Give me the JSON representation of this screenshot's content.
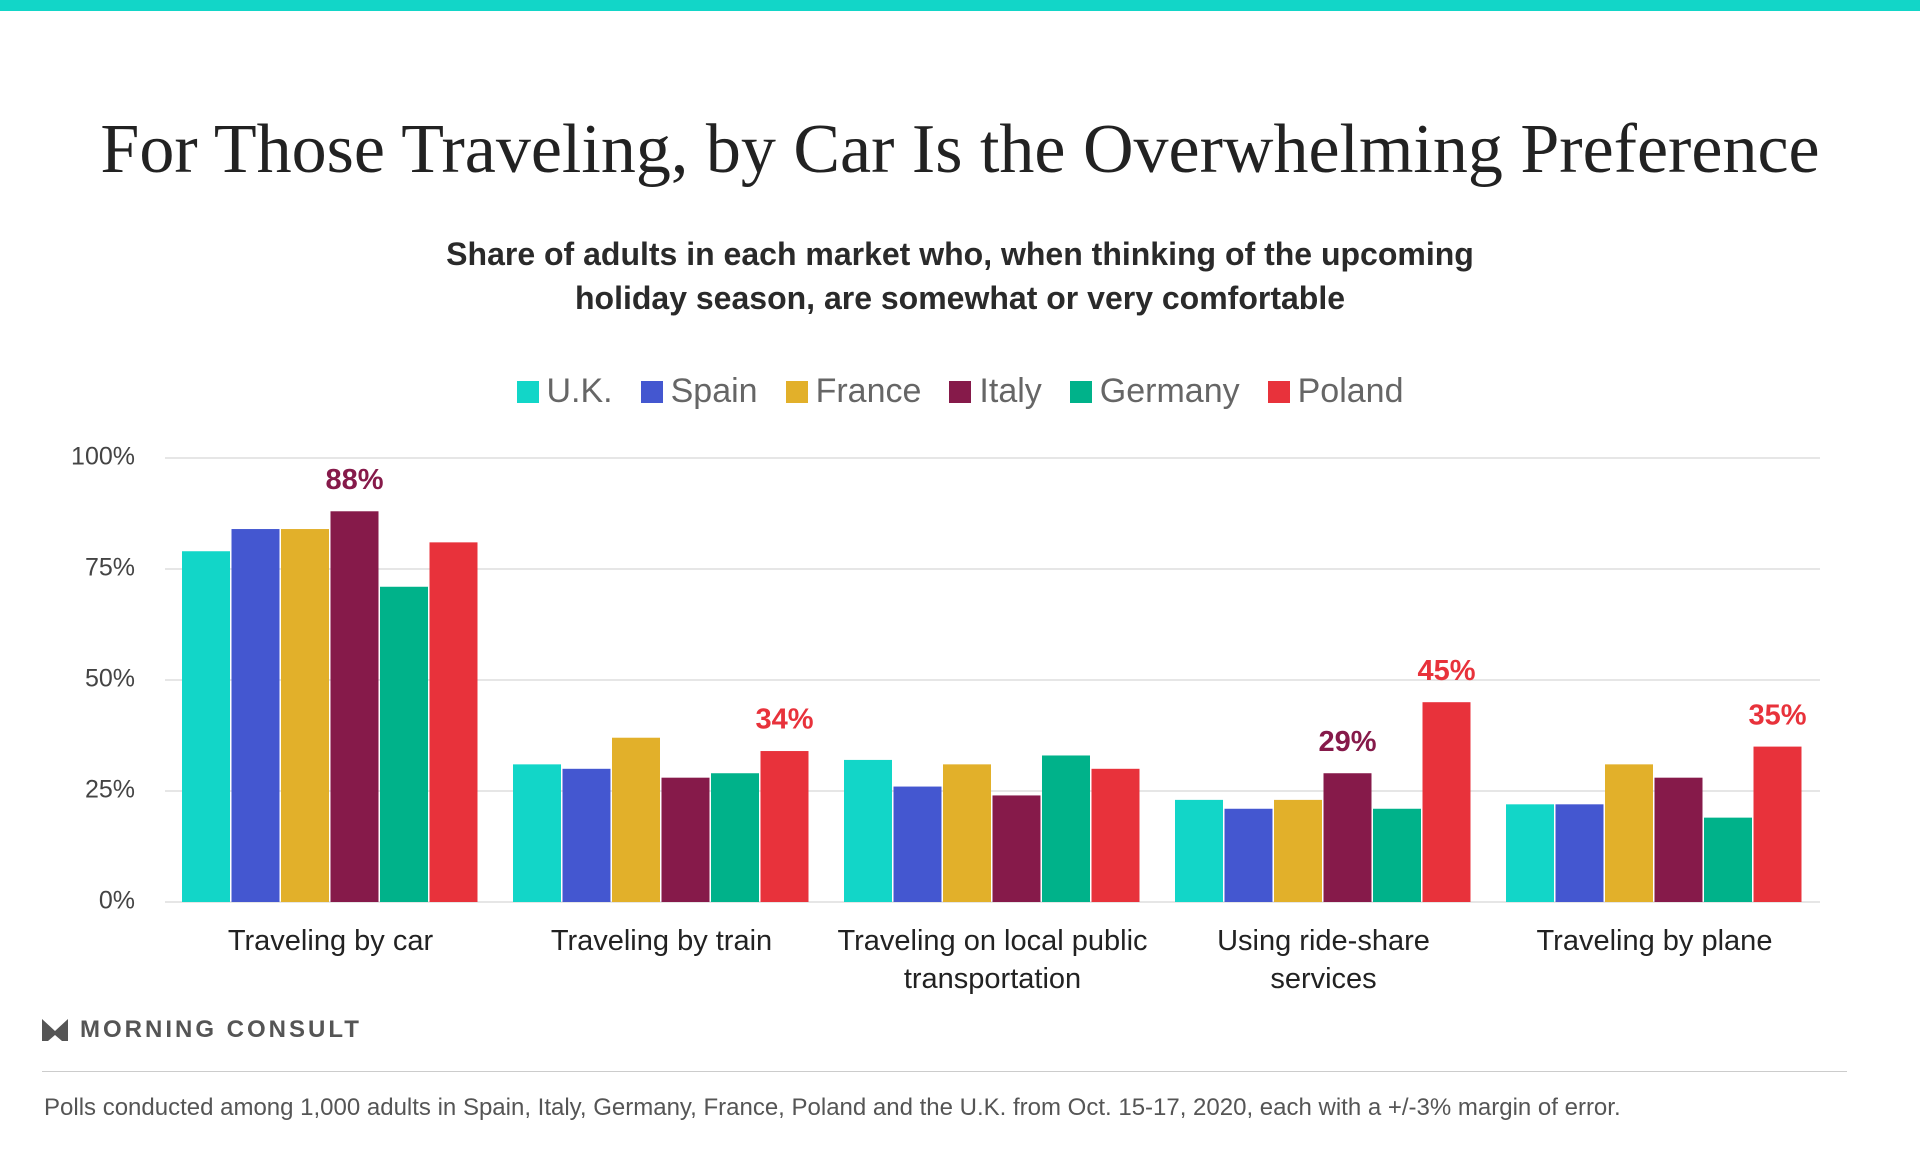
{
  "chart_data": {
    "type": "bar",
    "title": "For Those Traveling, by Car Is the Overwhelming Preference",
    "subtitle": "Share of adults in each market who, when thinking of the upcoming holiday season, are somewhat or very comfortable",
    "categories": [
      "Traveling by car",
      "Traveling by train",
      "Traveling on local public transportation",
      "Using ride-share services",
      "Traveling by plane"
    ],
    "series": [
      {
        "name": "U.K.",
        "color": "#12d6c8",
        "values": [
          79,
          31,
          32,
          23,
          22
        ]
      },
      {
        "name": "Spain",
        "color": "#4457d0",
        "values": [
          84,
          30,
          26,
          21,
          22
        ]
      },
      {
        "name": "France",
        "color": "#e2b02a",
        "values": [
          84,
          37,
          31,
          23,
          31
        ]
      },
      {
        "name": "Italy",
        "color": "#861a4a",
        "values": [
          88,
          28,
          24,
          29,
          28
        ],
        "value_labels": [
          "88%",
          null,
          null,
          "29%",
          null
        ]
      },
      {
        "name": "Germany",
        "color": "#00b28a",
        "values": [
          71,
          29,
          33,
          21,
          19
        ]
      },
      {
        "name": "Poland",
        "color": "#e8323b",
        "values": [
          81,
          34,
          30,
          45,
          35
        ],
        "value_labels": [
          null,
          "34%",
          null,
          "45%",
          "35%"
        ]
      }
    ],
    "ylim": [
      0,
      100
    ],
    "yticks": [
      {
        "value": 0,
        "label": "0%"
      },
      {
        "value": 25,
        "label": "25%"
      },
      {
        "value": 50,
        "label": "50%"
      },
      {
        "value": 75,
        "label": "75%"
      },
      {
        "value": 100,
        "label": "100%"
      }
    ],
    "grid": true,
    "brand": "MORNING CONSULT",
    "footnote": "Polls conducted among 1,000 adults in Spain, Italy, Germany, France, Poland and the U.K. from Oct. 15-17, 2020, each with a +/-3% margin of error."
  }
}
